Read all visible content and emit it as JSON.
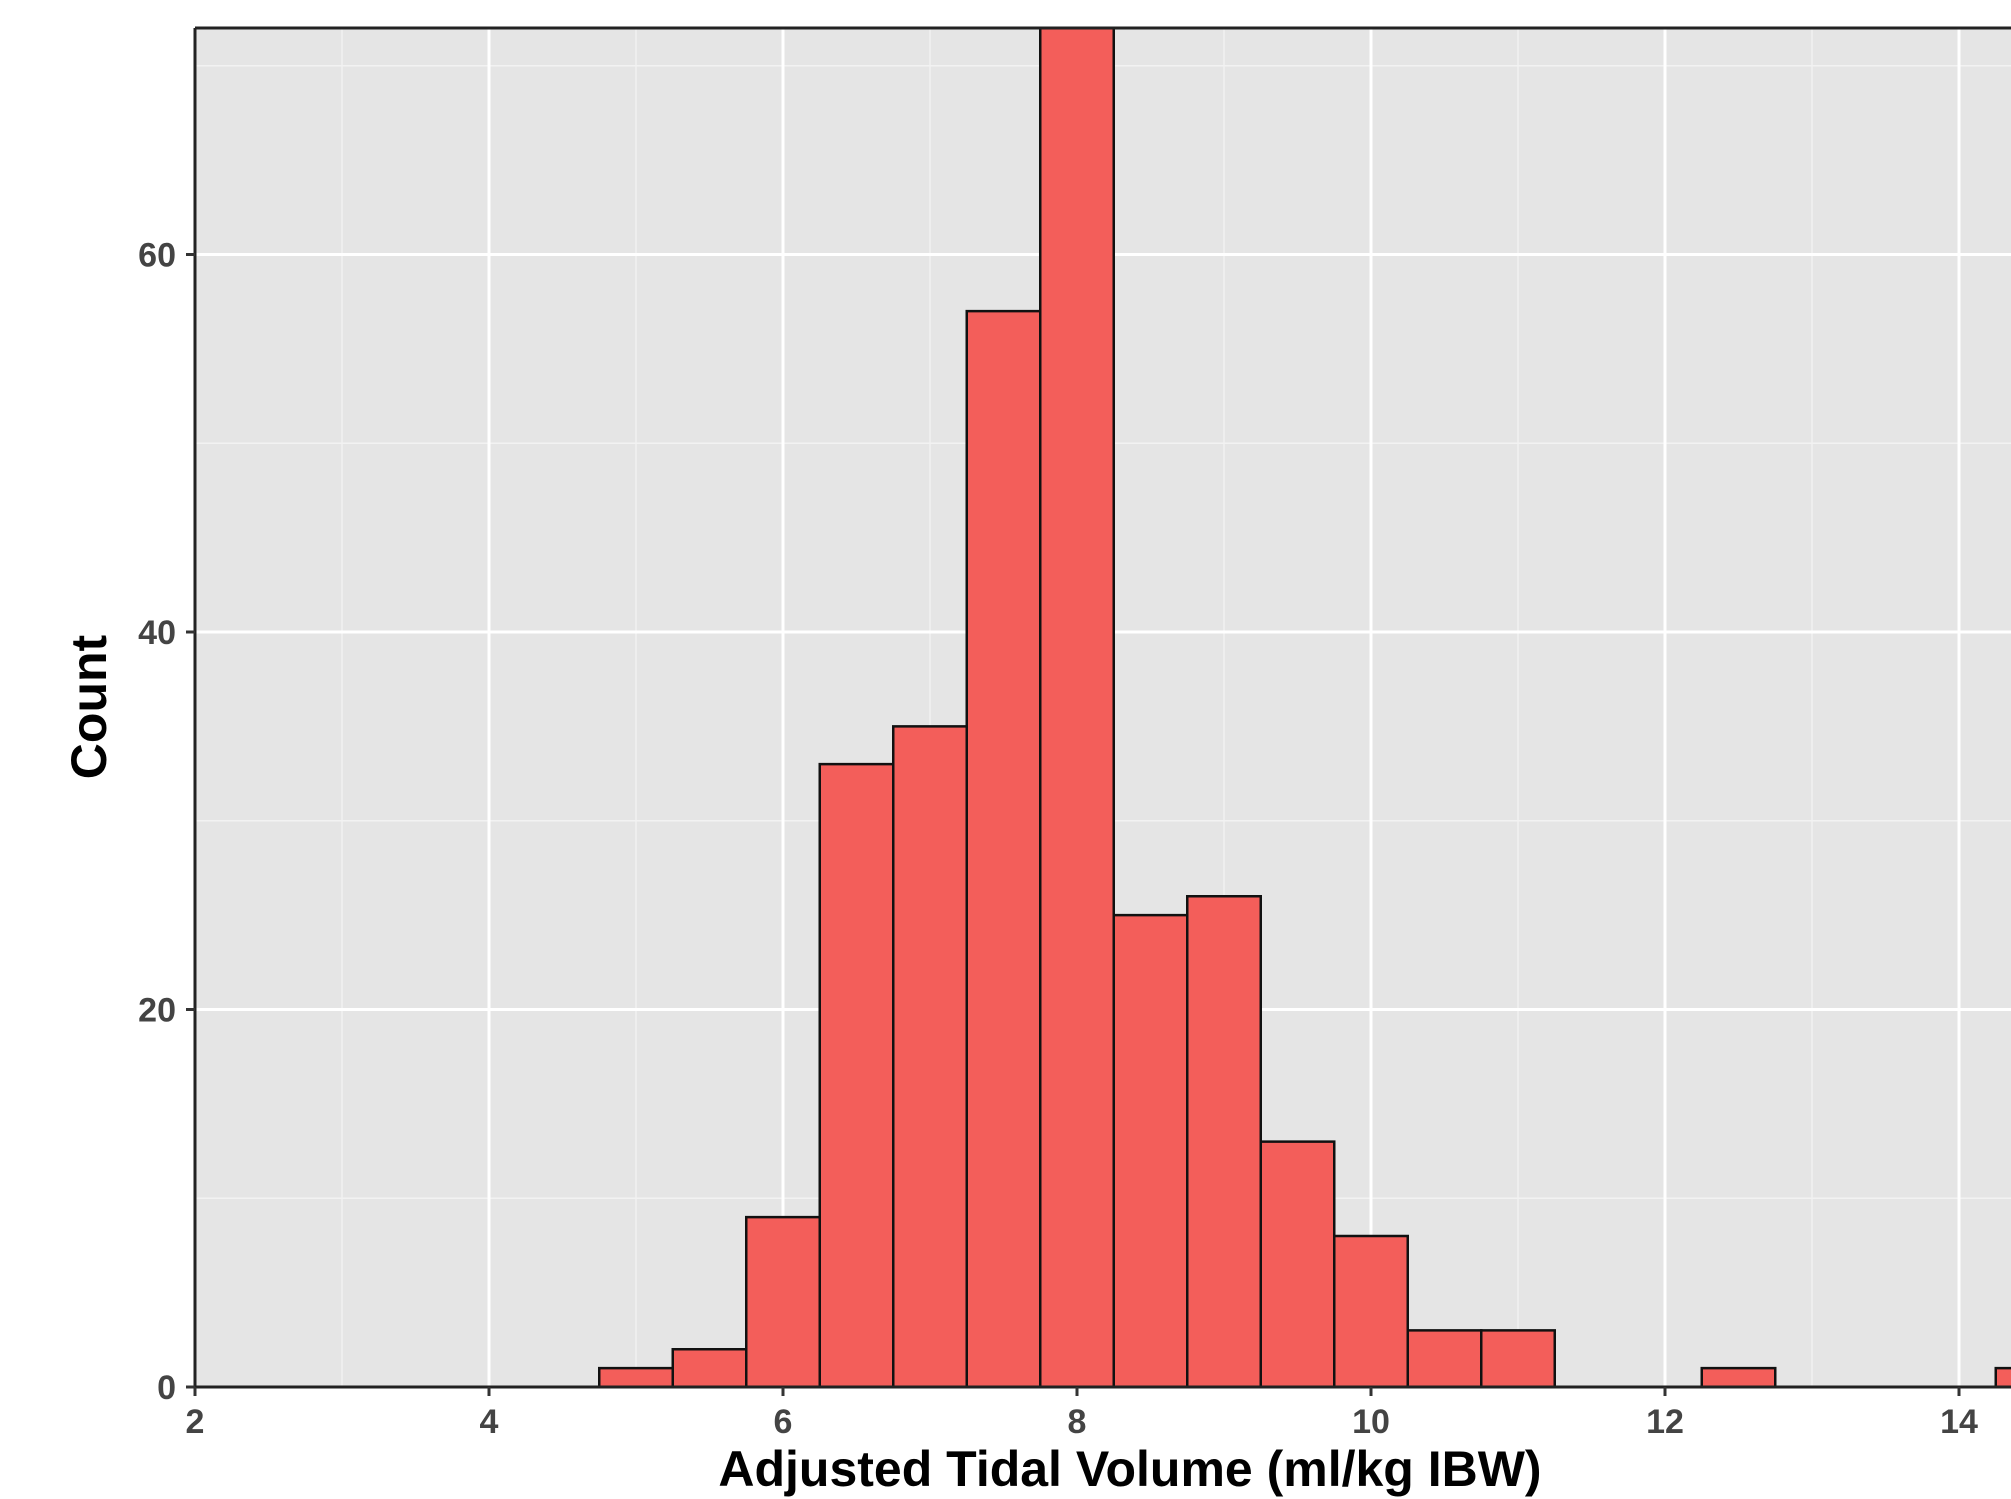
{
  "chart_data": {
    "type": "bar",
    "title": "",
    "xlabel": "Adjusted Tidal Volume (ml/kg IBW)",
    "ylabel": "Count",
    "bin_width": 0.5,
    "bins": [
      {
        "start": 4.75,
        "end": 5.25,
        "count": 1
      },
      {
        "start": 5.25,
        "end": 5.75,
        "count": 2
      },
      {
        "start": 5.75,
        "end": 6.25,
        "count": 9
      },
      {
        "start": 6.25,
        "end": 6.75,
        "count": 33
      },
      {
        "start": 6.75,
        "end": 7.25,
        "count": 35
      },
      {
        "start": 7.25,
        "end": 7.75,
        "count": 57
      },
      {
        "start": 7.75,
        "end": 8.25,
        "count": 72
      },
      {
        "start": 8.25,
        "end": 8.75,
        "count": 25
      },
      {
        "start": 8.75,
        "end": 9.25,
        "count": 26
      },
      {
        "start": 9.25,
        "end": 9.75,
        "count": 13
      },
      {
        "start": 9.75,
        "end": 10.25,
        "count": 8
      },
      {
        "start": 10.25,
        "end": 10.75,
        "count": 3
      },
      {
        "start": 10.75,
        "end": 11.25,
        "count": 3
      },
      {
        "start": 12.25,
        "end": 12.75,
        "count": 1
      },
      {
        "start": 14.25,
        "end": 14.75,
        "count": 1
      }
    ],
    "xlim": [
      2,
      14.4
    ],
    "ylim": [
      0,
      72
    ],
    "x_ticks": [
      2,
      4,
      6,
      8,
      10,
      12,
      14
    ],
    "y_ticks": [
      0,
      20,
      40,
      60
    ],
    "grid": true,
    "legend": "none",
    "colors": {
      "bar_fill": "#F35E5A",
      "bar_stroke": "#111111",
      "panel_background": "#E5E5E5",
      "grid_major": "#FFFFFF",
      "grid_minor": "#F2F2F2"
    }
  }
}
